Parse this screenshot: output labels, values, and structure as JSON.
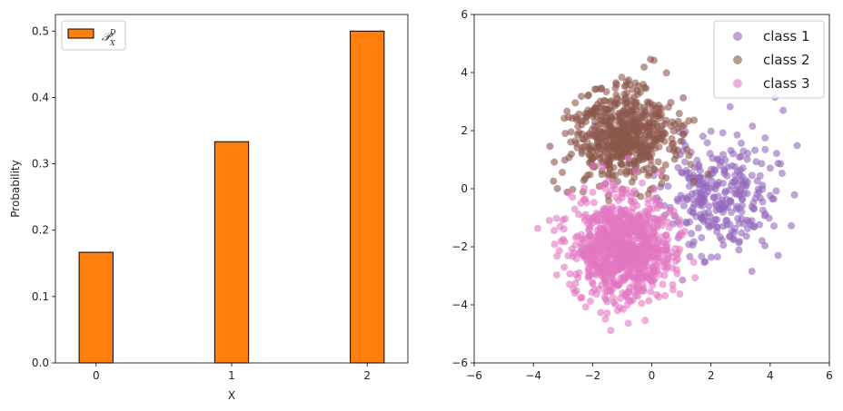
{
  "chart_data": [
    {
      "type": "bar",
      "categories": [
        "0",
        "1",
        "2"
      ],
      "values": [
        0.1667,
        0.3333,
        0.5
      ],
      "xlabel": "X",
      "ylabel": "Probability",
      "ylim": [
        0.0,
        0.525
      ],
      "xlim": [
        -0.3,
        2.3
      ],
      "yticks": [
        "0.0",
        "0.1",
        "0.2",
        "0.3",
        "0.4",
        "0.5"
      ],
      "legend": {
        "placement": "top-left",
        "entries": [
          {
            "name": "𝒫ᴰ_X",
            "color": "#ff7f0e"
          }
        ]
      },
      "bar_color": "#ff7f0e",
      "edge_color": "#000000",
      "grid": false
    },
    {
      "type": "scatter",
      "xlim": [
        -6,
        6
      ],
      "ylim": [
        -6,
        6
      ],
      "xticks": [
        "−6",
        "−4",
        "−2",
        "0",
        "2",
        "4",
        "6"
      ],
      "yticks": [
        "−6",
        "−4",
        "−2",
        "0",
        "2",
        "4",
        "6"
      ],
      "grid": false,
      "legend": {
        "placement": "top-right"
      },
      "series": [
        {
          "name": "class 1",
          "color": "#9467bd",
          "mean": [
            2.3,
            -0.3
          ],
          "std": [
            0.9,
            1.0
          ],
          "n": 300,
          "seed": 11
        },
        {
          "name": "class 2",
          "color": "#8c564b",
          "mean": [
            -1.0,
            1.8
          ],
          "std": [
            0.85,
            0.8
          ],
          "n": 600,
          "seed": 23
        },
        {
          "name": "class 3",
          "color": "#e377c2",
          "mean": [
            -1.0,
            -2.0
          ],
          "std": [
            0.85,
            0.9
          ],
          "n": 900,
          "seed": 37
        }
      ]
    }
  ]
}
